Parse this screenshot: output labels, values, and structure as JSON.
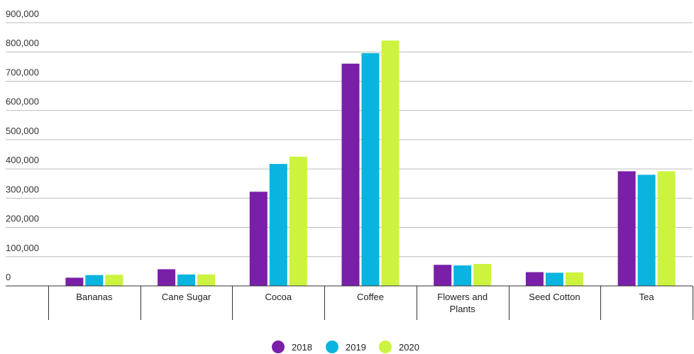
{
  "chart_data": {
    "type": "bar",
    "categories": [
      "Bananas",
      "Cane Sugar",
      "Cocoa",
      "Coffee",
      "Flowers and Plants",
      "Seed Cotton",
      "Tea"
    ],
    "series": [
      {
        "name": "2018",
        "color": "#7a1fa8",
        "values": [
          28000,
          57000,
          322000,
          760000,
          72000,
          47000,
          392000
        ]
      },
      {
        "name": "2019",
        "color": "#0ab4e0",
        "values": [
          37000,
          39000,
          417000,
          796000,
          70000,
          45000,
          380000
        ]
      },
      {
        "name": "2020",
        "color": "#ccf33e",
        "values": [
          38000,
          39000,
          442000,
          839000,
          75000,
          46000,
          392000
        ]
      }
    ],
    "ylim": [
      0,
      900000
    ],
    "yticks": [
      0,
      100000,
      200000,
      300000,
      400000,
      500000,
      600000,
      700000,
      800000,
      900000
    ],
    "ytick_labels": [
      "0",
      "100,000",
      "200,000",
      "300,000",
      "400,000",
      "500,000",
      "600,000",
      "700,000",
      "800,000",
      "900,000"
    ],
    "grid": true,
    "legend": "bottom-center",
    "title": "",
    "xlabel": "",
    "ylabel": ""
  }
}
